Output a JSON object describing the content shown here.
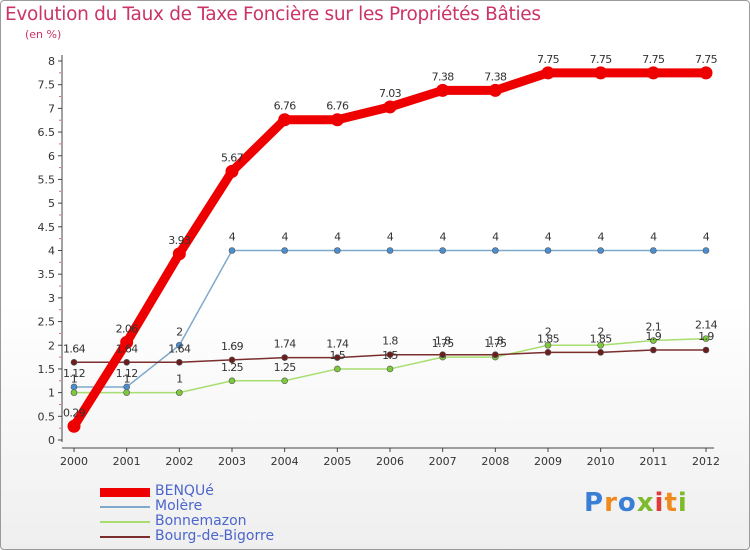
{
  "header": {
    "title": "Evolution du Taux de Taxe Foncière sur les Propriétés Bâties",
    "unit": "(en %)"
  },
  "logo": {
    "text": "Proxiti",
    "colors": [
      "#3a7fd5",
      "#f08a1c",
      "#7dbb2c",
      "#e03a3a"
    ]
  },
  "chart_data": {
    "type": "line",
    "title": "Evolution du Taux de Taxe Foncière sur les Propriétés Bâties",
    "ylabel": "(en %)",
    "xlabel": "",
    "x": [
      "2000",
      "2001",
      "2002",
      "2003",
      "2004",
      "2005",
      "2006",
      "2007",
      "2008",
      "2009",
      "2010",
      "2011",
      "2012"
    ],
    "ylim": [
      0,
      8
    ],
    "yticks": [
      "0",
      "0.5",
      "1",
      "1.5",
      "2",
      "2.5",
      "3",
      "3.5",
      "4",
      "4.5",
      "5",
      "5.5",
      "6",
      "6.5",
      "7",
      "7.5",
      "8"
    ],
    "grid": false,
    "legend": "bottom-left",
    "series": [
      {
        "name": "BENQUé",
        "color": "#ee0000",
        "emphasis": true,
        "values": [
          0.29,
          2.06,
          3.93,
          5.67,
          6.76,
          6.76,
          7.03,
          7.38,
          7.38,
          7.75,
          7.75,
          7.75,
          7.75
        ],
        "labels": [
          "0.29",
          "2.06",
          "3.93",
          "5.67",
          "6.76",
          "6.76",
          "7.03",
          "7.38",
          "7.38",
          "7.75",
          "7.75",
          "7.75",
          "7.75"
        ]
      },
      {
        "name": "Molère",
        "color": "#7fa9cc",
        "marker": "#4a8ed0",
        "values": [
          1.12,
          1.12,
          2,
          4,
          4,
          4,
          4,
          4,
          4,
          4,
          4,
          4,
          4
        ],
        "labels": [
          "1.12",
          "1.12",
          "2",
          "4",
          "4",
          "4",
          "4",
          "4",
          "4",
          "4",
          "4",
          "4",
          "4"
        ]
      },
      {
        "name": "Bonnemazon",
        "color": "#a8dd70",
        "marker": "#7dc93c",
        "values": [
          1,
          1,
          1,
          1.25,
          1.25,
          1.5,
          1.5,
          1.75,
          1.75,
          2,
          2,
          2.1,
          2.14
        ],
        "labels": [
          "1",
          "1",
          "1",
          "1.25",
          "1.25",
          "1.5",
          "1.5",
          "1.75",
          "1.75",
          "2",
          "2",
          "2.1",
          "2.14"
        ]
      },
      {
        "name": "Bourg-de-Bigorre",
        "color": "#7a2e2e",
        "marker": "#6b1e1e",
        "values": [
          1.64,
          1.64,
          1.64,
          1.69,
          1.74,
          1.74,
          1.8,
          1.8,
          1.8,
          1.85,
          1.85,
          1.9,
          1.9
        ],
        "labels": [
          "1.64",
          "1.64",
          "1.64",
          "1.69",
          "1.74",
          "1.74",
          "1.8",
          "1.8",
          "1.8",
          "1.85",
          "1.85",
          "1.9",
          "1.9"
        ]
      }
    ]
  }
}
